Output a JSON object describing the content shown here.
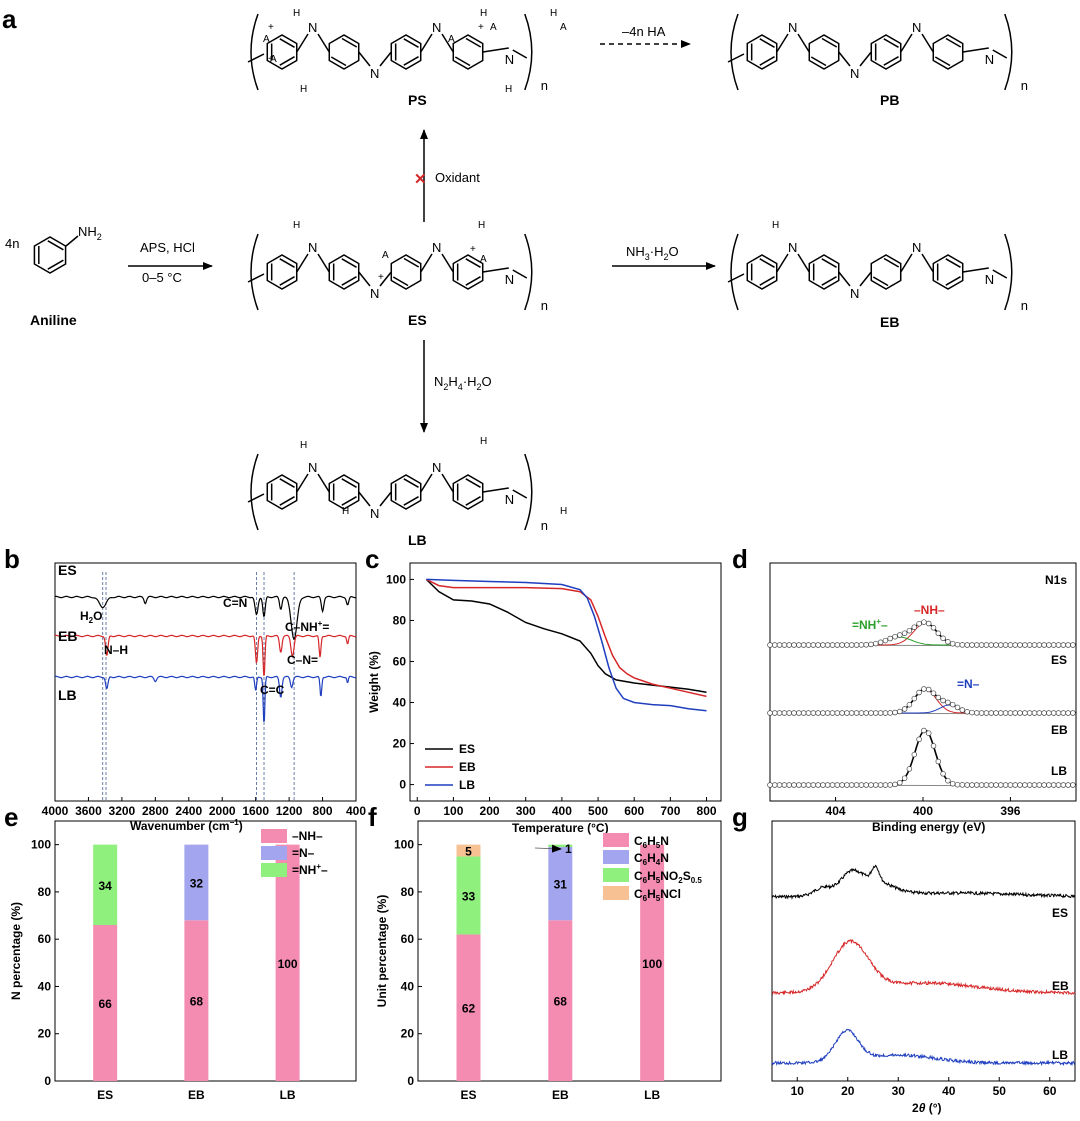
{
  "panel_labels": {
    "a": "a",
    "b": "b",
    "c": "c",
    "d": "d",
    "e": "e",
    "f": "f",
    "g": "g"
  },
  "scheme": {
    "aniline_coef": "4n",
    "aniline_name": "Aniline",
    "nh2": "NH",
    "arrow1_top": "APS, HCl",
    "arrow1_bottom": "0–5 °C",
    "es_name": "ES",
    "ps_name": "PS",
    "pb_name": "PB",
    "eb_name": "EB",
    "lb_name": "LB",
    "oxidant": "Oxidant",
    "minus_ha": "–4n HA",
    "nh3": "NH",
    "nh3_tail": "·H",
    "nh3_end": "O",
    "n2h4": "N",
    "n2h4_mid": "H",
    "n2h4_tail": "·H",
    "n2h4_end": "O",
    "n_sub": "n",
    "anion": "A",
    "atom_n": "N",
    "atom_h": "H",
    "atom_nh": "NH",
    "atom_hn": "HN",
    "plus": "+",
    "minus": "–",
    "sub2": "2",
    "sub3": "3",
    "sub4": "4",
    "cross": "✕"
  },
  "chart_data": [
    {
      "panel": "b",
      "type": "line",
      "xlabel": "Wavenumber (cm",
      "xlabel_sup": "−1",
      "xlabel_end": ")",
      "xticks": [
        4000,
        3600,
        3200,
        2800,
        2400,
        2000,
        1600,
        1200,
        800,
        400
      ],
      "xlim": [
        4000,
        400
      ],
      "series": [
        {
          "name": "ES",
          "color": "#000000"
        },
        {
          "name": "EB",
          "color": "#d62728"
        },
        {
          "name": "LB",
          "color": "#1f3fbf"
        }
      ],
      "annotations": {
        "h2o": "H",
        "h2o_2": "2",
        "h2o_3": "O",
        "cn": "C=N",
        "cnh": "C–NH",
        "cnh_sup": "+",
        "cnh_end": "=",
        "nh": "N–H",
        "cn2": "C–N=",
        "cc": "C=C"
      },
      "dashed_lines_at": [
        3430,
        3390,
        1590,
        1500,
        1140
      ]
    },
    {
      "panel": "c",
      "type": "line",
      "xlabel": "Temperature (°C)",
      "ylabel": "Weight (%)",
      "xticks": [
        0,
        100,
        200,
        300,
        400,
        500,
        600,
        700,
        800
      ],
      "yticks": [
        0,
        20,
        40,
        60,
        80,
        100
      ],
      "xlim": [
        -20,
        840
      ],
      "ylim": [
        -8,
        108
      ],
      "legend_position": "bottom-left",
      "series": [
        {
          "name": "ES",
          "color": "#000000",
          "x": [
            25,
            60,
            100,
            150,
            200,
            250,
            300,
            350,
            400,
            450,
            480,
            500,
            520,
            550,
            600,
            650,
            700,
            750,
            800
          ],
          "y": [
            100,
            94,
            90,
            89.5,
            88,
            84,
            79,
            76,
            73.5,
            70,
            64,
            58,
            54,
            51,
            49.5,
            48.5,
            47.5,
            46.5,
            45
          ]
        },
        {
          "name": "EB",
          "color": "#d62728",
          "x": [
            25,
            60,
            100,
            150,
            200,
            300,
            400,
            450,
            480,
            500,
            520,
            540,
            560,
            580,
            600,
            650,
            700,
            750,
            800
          ],
          "y": [
            100,
            97,
            96,
            96,
            96,
            96,
            95.5,
            94,
            90,
            82,
            72,
            63,
            57,
            54,
            52,
            49,
            47,
            45,
            43
          ]
        },
        {
          "name": "LB",
          "color": "#1f3fbf",
          "x": [
            25,
            100,
            200,
            300,
            400,
            450,
            470,
            490,
            510,
            530,
            550,
            570,
            600,
            650,
            700,
            750,
            800
          ],
          "y": [
            100,
            99.5,
            99,
            98.5,
            97.5,
            95,
            91,
            82,
            70,
            57,
            47,
            42,
            40,
            39,
            38.5,
            37,
            36
          ]
        }
      ]
    },
    {
      "panel": "d",
      "type": "scatter",
      "xlabel": "Binding energy (eV)",
      "xticks": [
        404,
        400,
        396
      ],
      "xlim": [
        407,
        393
      ],
      "corner_label": "N1s",
      "series": [
        {
          "name": "ES"
        },
        {
          "name": "EB"
        },
        {
          "name": "LB"
        }
      ],
      "peak_labels": {
        "nhplus": "=NH",
        "nhplus_sup": "+",
        "nhplus_end": "–",
        "nh": "–NH–",
        "n": "=N–"
      }
    },
    {
      "panel": "e",
      "type": "bar",
      "ylabel": "N percentage (%)",
      "categories": [
        "ES",
        "EB",
        "LB"
      ],
      "yticks": [
        0,
        20,
        40,
        60,
        80,
        100
      ],
      "ylim": [
        0,
        110
      ],
      "series": [
        {
          "name": "–NH–",
          "color": "#f48cb1",
          "values": [
            66,
            68,
            100
          ]
        },
        {
          "name": "=N–",
          "color": "#a3a6ee",
          "values": [
            0,
            32,
            0
          ]
        },
        {
          "name": "=NH+–",
          "color": "#8ff07e",
          "values": [
            34,
            0,
            0
          ]
        }
      ],
      "value_labels": [
        [
          "66",
          "",
          "34"
        ],
        [
          "68",
          "32",
          ""
        ],
        [
          "100",
          "",
          ""
        ]
      ],
      "legend_text": [
        [
          "–NH–",
          "",
          ""
        ],
        [
          "=N–",
          "",
          ""
        ],
        [
          "=NH",
          "+",
          "–"
        ]
      ]
    },
    {
      "panel": "f",
      "type": "bar",
      "ylabel": "Unit percentage (%)",
      "categories": [
        "ES",
        "EB",
        "LB"
      ],
      "yticks": [
        0,
        20,
        40,
        60,
        80,
        100
      ],
      "ylim": [
        0,
        110
      ],
      "series": [
        {
          "name": "C6H5N",
          "color": "#f48cb1",
          "values": [
            62,
            68,
            100
          ]
        },
        {
          "name": "C6H4N",
          "color": "#a3a6ee",
          "values": [
            0,
            31,
            0
          ]
        },
        {
          "name": "C6H5NO2S0.5",
          "color": "#8ff07e",
          "values": [
            33,
            1,
            0
          ]
        },
        {
          "name": "C6H5NCl",
          "color": "#f8c194",
          "values": [
            5,
            0,
            0
          ]
        }
      ],
      "value_labels": [
        [
          "62",
          "",
          "33",
          "5"
        ],
        [
          "68",
          "31",
          "",
          ""
        ],
        [
          "100",
          "",
          "",
          ""
        ]
      ],
      "callout": "1"
    },
    {
      "panel": "g",
      "type": "line",
      "xlabel": "2θ (°)",
      "xlabel_theta": "θ",
      "xticks": [
        10,
        20,
        30,
        40,
        50,
        60
      ],
      "xlim": [
        5,
        65
      ],
      "series": [
        {
          "name": "ES",
          "color": "#000000"
        },
        {
          "name": "EB",
          "color": "#d62728"
        },
        {
          "name": "LB",
          "color": "#1f3fbf"
        }
      ]
    }
  ]
}
